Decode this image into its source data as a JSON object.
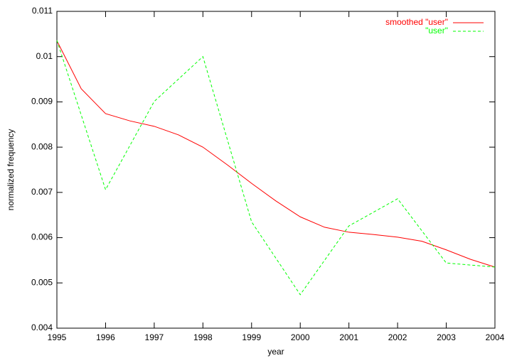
{
  "chart_data": {
    "type": "line",
    "x_label": "year",
    "y_label": "normalized frequency",
    "xlim": [
      1995,
      2004
    ],
    "ylim": [
      0.004,
      0.011
    ],
    "xticks": [
      1995,
      1996,
      1997,
      1998,
      1999,
      2000,
      2001,
      2002,
      2003,
      2004
    ],
    "yticks": [
      0.004,
      0.005,
      0.006,
      0.007,
      0.008,
      0.009,
      0.01,
      0.011
    ],
    "legend": "top-right",
    "series": [
      {
        "name": "smoothed \"user\"",
        "color": "#ff0000",
        "dash": false,
        "x": [
          1995,
          1995.5,
          1996,
          1996.5,
          1997,
          1997.5,
          1998,
          1998.5,
          1999,
          1999.5,
          2000,
          2000.5,
          2001,
          2001.5,
          2002,
          2002.5,
          2003,
          2003.5,
          2004
        ],
        "values": [
          0.01035,
          0.00929,
          0.00874,
          0.00858,
          0.00846,
          0.00827,
          0.008,
          0.00761,
          0.0072,
          0.00681,
          0.00646,
          0.00623,
          0.00612,
          0.00607,
          0.00601,
          0.00592,
          0.00573,
          0.00552,
          0.00535
        ]
      },
      {
        "name": "\"user\"",
        "color": "#00ff00",
        "dash": true,
        "x": [
          1995,
          1996,
          1997,
          1998,
          1999,
          2000,
          2001,
          2002,
          2003,
          2004
        ],
        "values": [
          0.01036,
          0.00706,
          0.00901,
          0.01,
          0.00635,
          0.00474,
          0.00626,
          0.00686,
          0.00544,
          0.00535
        ]
      }
    ]
  }
}
